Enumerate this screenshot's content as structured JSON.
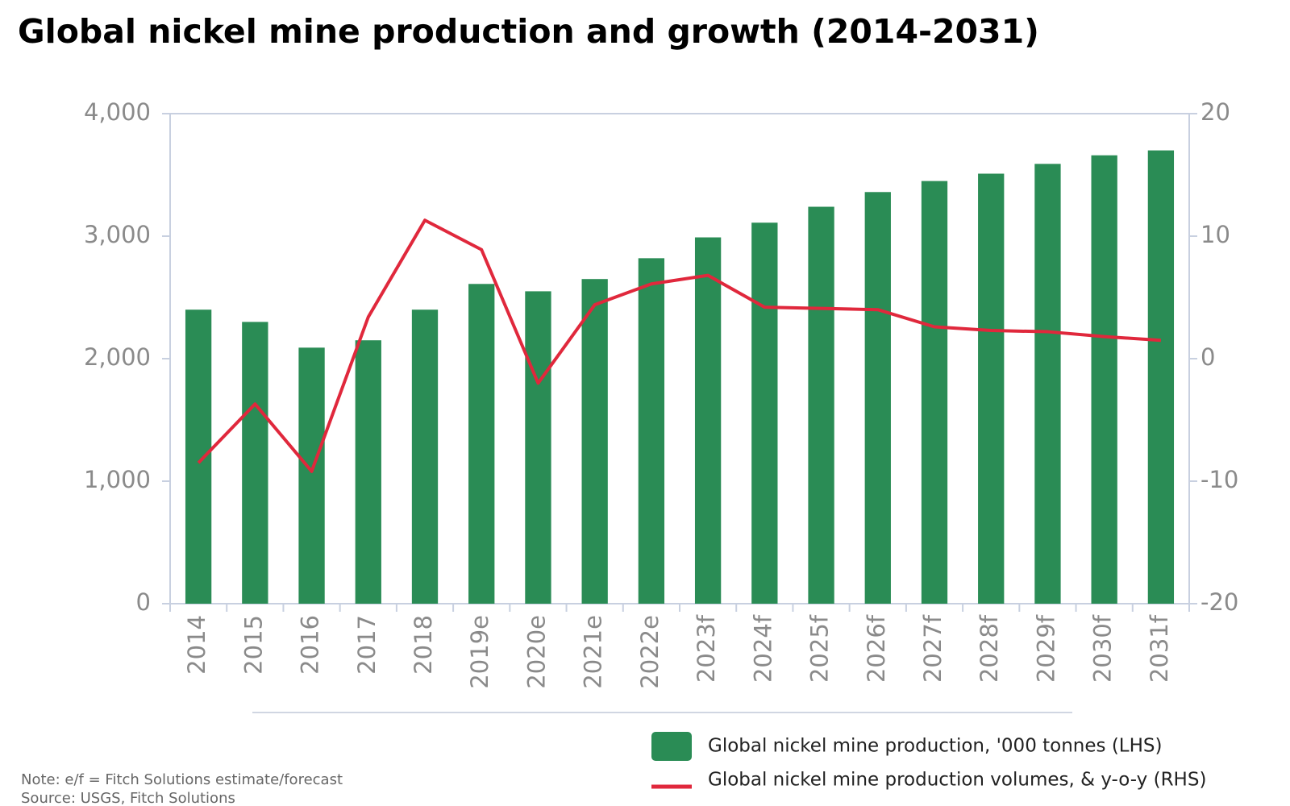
{
  "chart_data": {
    "type": "bar_line",
    "title": "Global nickel mine production and growth (2014-2031)",
    "categories": [
      "2014",
      "2015",
      "2016",
      "2017",
      "2018",
      "2019e",
      "2020e",
      "2021e",
      "2022e",
      "2023f",
      "2024f",
      "2025f",
      "2026f",
      "2027f",
      "2028f",
      "2029f",
      "2030f",
      "2031f"
    ],
    "series": [
      {
        "name": "Global nickel mine production, '000 tonnes (LHS)",
        "type": "bar",
        "color": "#2a8c55",
        "values": [
          2400,
          2300,
          2090,
          2150,
          2400,
          2610,
          2550,
          2650,
          2820,
          2990,
          3110,
          3240,
          3360,
          3450,
          3510,
          3590,
          3660,
          3700
        ]
      },
      {
        "name": "Global nickel mine production volumes, & y-o-y (RHS)",
        "type": "line",
        "axis": "y2",
        "color": "#e0283c",
        "values": [
          -8.5,
          -3.7,
          -9.2,
          3.4,
          11.3,
          8.9,
          -2.0,
          4.4,
          6.1,
          6.8,
          4.2,
          4.1,
          4.0,
          2.6,
          2.3,
          2.2,
          1.8,
          1.5
        ]
      }
    ],
    "ylim": [
      0,
      4000
    ],
    "yticks": [
      {
        "value": 0,
        "label": "0"
      },
      {
        "value": 1000,
        "label": "1,000"
      },
      {
        "value": 2000,
        "label": "2,000"
      },
      {
        "value": 3000,
        "label": "3,000"
      },
      {
        "value": 4000,
        "label": "4,000"
      }
    ],
    "y2lim": [
      -20,
      20
    ],
    "y2ticks": [
      -20,
      -10,
      0,
      10,
      20
    ],
    "note": "Note: e/f = Fitch Solutions estimate/forecast",
    "source": "Source: USGS, Fitch Solutions"
  }
}
